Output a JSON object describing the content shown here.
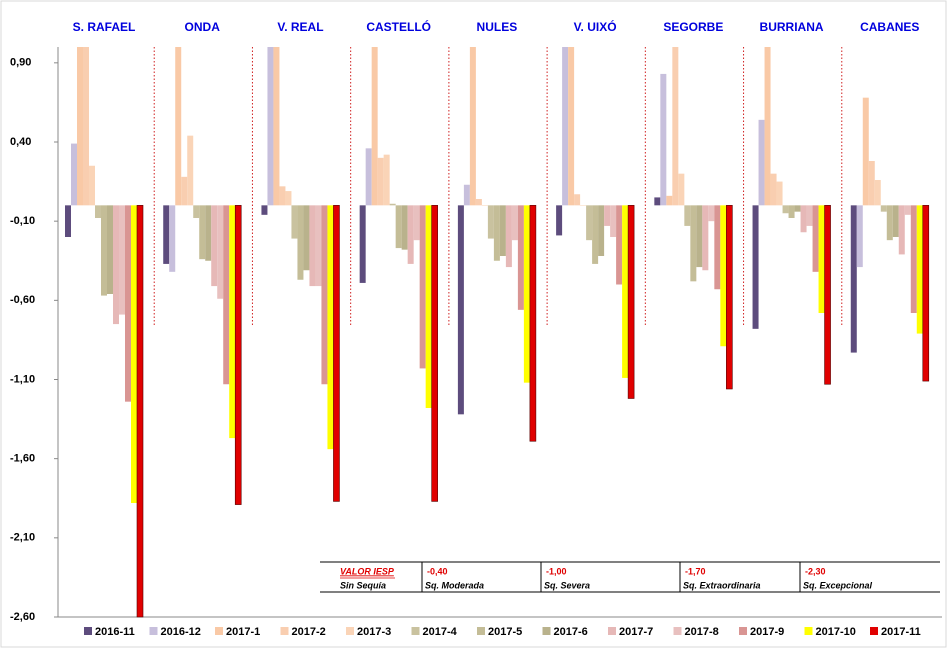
{
  "chart_data": {
    "type": "bar",
    "categories": [
      "S. RAFAEL",
      "ONDA",
      "V. REAL",
      "CASTELLÓ",
      "NULES",
      "V. UIXÓ",
      "SEGORBE",
      "BURRIANA",
      "CABANES"
    ],
    "ylim": [
      -2.6,
      1.0
    ],
    "yticks": [
      {
        "value": 0.9,
        "label": "0,90"
      },
      {
        "value": 0.4,
        "label": "0,40"
      },
      {
        "value": -0.1,
        "label": "-0,10"
      },
      {
        "value": -0.6,
        "label": "-0,60"
      },
      {
        "value": -1.1,
        "label": "-1,10"
      },
      {
        "value": -1.6,
        "label": "-1,60"
      },
      {
        "value": -2.1,
        "label": "-2,10"
      },
      {
        "value": -2.6,
        "label": "-2,60"
      }
    ],
    "legend": "bottom",
    "series": [
      {
        "name": "2016-11",
        "color": "#5d4c7d",
        "values": [
          -0.2,
          -0.37,
          -0.06,
          -0.49,
          -1.32,
          -0.19,
          0.05,
          -0.78,
          -0.93
        ]
      },
      {
        "name": "2016-12",
        "color": "#c7bfdc",
        "values": [
          0.39,
          -0.42,
          1.0,
          0.36,
          0.13,
          1.0,
          0.83,
          0.54,
          -0.39
        ]
      },
      {
        "name": "2017-1",
        "color": "#f9c9a6",
        "values": [
          1.0,
          1.0,
          1.0,
          1.0,
          1.0,
          1.0,
          0.06,
          1.0,
          0.68
        ]
      },
      {
        "name": "2017-2",
        "color": "#f9ceb0",
        "values": [
          1.0,
          0.18,
          0.12,
          0.3,
          0.04,
          0.07,
          1.0,
          0.2,
          0.28
        ]
      },
      {
        "name": "2017-3",
        "color": "#fad4b7",
        "values": [
          0.25,
          0.44,
          0.09,
          0.32,
          0.0,
          0.0,
          0.2,
          0.15,
          0.16
        ]
      },
      {
        "name": "2017-4",
        "color": "#c9c29f",
        "values": [
          -0.08,
          -0.08,
          -0.21,
          0.01,
          -0.21,
          -0.22,
          -0.13,
          -0.05,
          -0.04
        ]
      },
      {
        "name": "2017-5",
        "color": "#c4bd97",
        "values": [
          -0.57,
          -0.34,
          -0.47,
          -0.27,
          -0.35,
          -0.37,
          -0.48,
          -0.08,
          -0.22
        ]
      },
      {
        "name": "2017-6",
        "color": "#b9b28c",
        "values": [
          -0.56,
          -0.35,
          -0.41,
          -0.28,
          -0.32,
          -0.32,
          -0.39,
          -0.04,
          -0.2
        ]
      },
      {
        "name": "2017-7",
        "color": "#e6b8b7",
        "values": [
          -0.75,
          -0.51,
          -0.51,
          -0.37,
          -0.39,
          -0.13,
          -0.41,
          -0.17,
          -0.31
        ]
      },
      {
        "name": "2017-8",
        "color": "#e8c0bf",
        "values": [
          -0.69,
          -0.59,
          -0.51,
          -0.22,
          -0.22,
          -0.2,
          -0.1,
          -0.13,
          -0.06
        ]
      },
      {
        "name": "2017-9",
        "color": "#d99593",
        "values": [
          -1.24,
          -1.13,
          -1.13,
          -1.03,
          -0.66,
          -0.5,
          -0.53,
          -0.42,
          -0.68
        ]
      },
      {
        "name": "2017-10",
        "color": "#ffff00",
        "values": [
          -1.88,
          -1.47,
          -1.54,
          -1.28,
          -1.12,
          -1.09,
          -0.89,
          -0.68,
          -0.81
        ]
      },
      {
        "name": "2017-11",
        "color": "#e00000",
        "values": [
          -2.6,
          -1.89,
          -1.87,
          -1.87,
          -1.49,
          -1.22,
          -1.16,
          -1.13,
          -1.11
        ]
      }
    ],
    "iesp_legend": {
      "header": "VALOR IESP",
      "header_label": "Sin Sequía",
      "classes": [
        {
          "threshold": "-0,40",
          "label": "Sq. Moderada"
        },
        {
          "threshold": "-1,00",
          "label": "Sq. Severa"
        },
        {
          "threshold": "-1,70",
          "label": "Sq. Extraordinaria"
        },
        {
          "threshold": "-2,30",
          "label": "Sq. Excepcional"
        }
      ]
    }
  }
}
